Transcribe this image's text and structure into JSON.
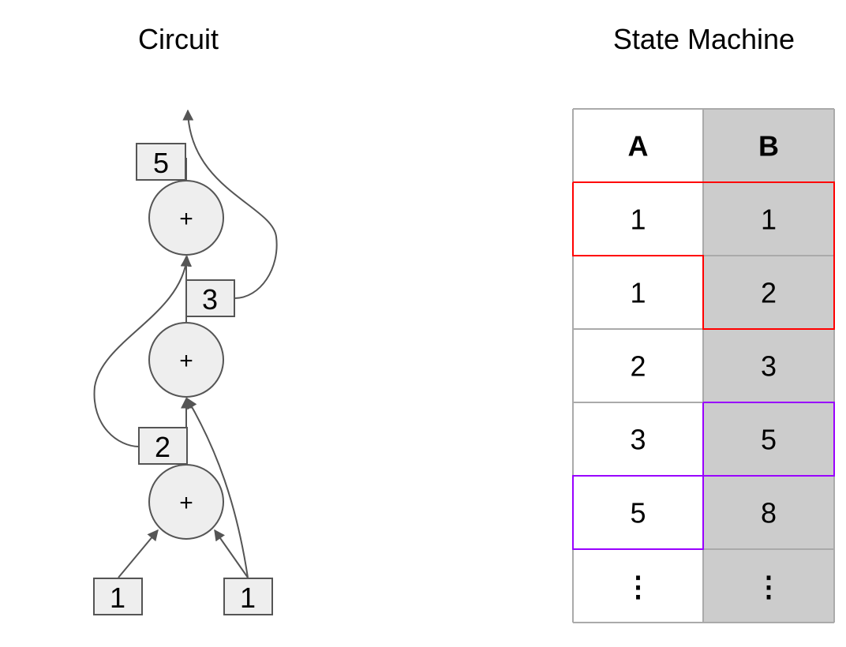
{
  "circuit": {
    "title": "Circuit",
    "operator": "+",
    "inputs": [
      "1",
      "1"
    ],
    "values": [
      "2",
      "3",
      "5"
    ]
  },
  "state_machine": {
    "title": "State Machine",
    "headers": [
      "A",
      "B"
    ],
    "rows": [
      [
        "1",
        "1"
      ],
      [
        "1",
        "2"
      ],
      [
        "2",
        "3"
      ],
      [
        "3",
        "5"
      ],
      [
        "5",
        "8"
      ],
      [
        "⋮",
        "⋮"
      ]
    ],
    "colors": {
      "column_b_fill": "#cccccc",
      "grid_line": "#aaaaaa",
      "highlight_1": "#ff0000",
      "highlight_2": "#9900ff"
    }
  }
}
